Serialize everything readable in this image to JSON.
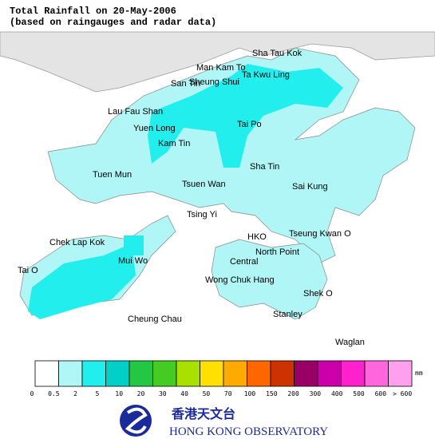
{
  "title": [
    "Total Rainfall on 20-May-2006",
    "(based on raingauges and radar data)"
  ],
  "places": [
    "Sha Tau Kok",
    "Man Kam To",
    "Ta Kwu Ling",
    "San Tin",
    "Sheung Shui",
    "Lau Fau Shan",
    "Yuen Long",
    "Tai Po",
    "Kam Tin",
    "Tuen Mun",
    "Sha Tin",
    "Tsuen Wan",
    "Sai Kung",
    "Tsing Yi",
    "Chek Lap Kok",
    "HKO",
    "Tseung Kwan O",
    "Mui Wo",
    "North Point",
    "Central",
    "Tai O",
    "Wong Chuk Hang",
    "Shek O",
    "Cheung Chau",
    "Stanley",
    "Waglan"
  ],
  "legend": {
    "colors": [
      "#ffffff",
      "#b0f6f6",
      "#22eeee",
      "#00d0c8",
      "#22c844",
      "#44cc22",
      "#a8e000",
      "#ffe000",
      "#ffaa00",
      "#ff6600",
      "#cc3300",
      "#990066",
      "#cc00aa",
      "#ff22cc",
      "#ff66dd",
      "#ffa0ee",
      "#ffe0ff"
    ],
    "labels": [
      "0",
      "0.5",
      "2",
      "5",
      "10",
      "20",
      "30",
      "40",
      "50",
      "70",
      "100",
      "150",
      "200",
      "300",
      "400",
      "500",
      "600",
      "> 600"
    ],
    "unit": "mm"
  },
  "logo": {
    "chinese": "香港天文台",
    "english": "HONG KONG OBSERVATORY"
  }
}
